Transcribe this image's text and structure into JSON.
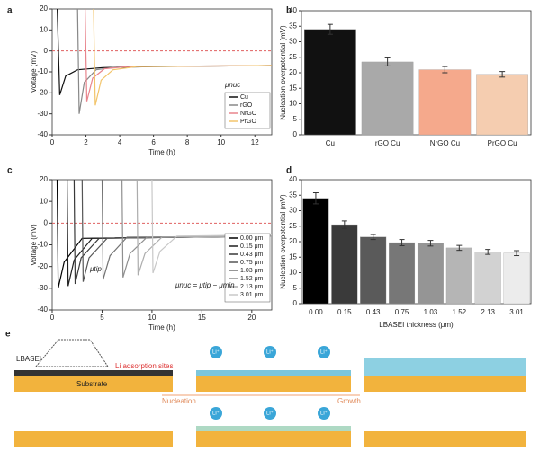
{
  "chart_data": [
    {
      "type": "line",
      "panel": "a",
      "xlabel": "Time (h)",
      "ylabel": "Voltage (mV)",
      "xlim": [
        0,
        13
      ],
      "xticks": [
        0,
        2,
        4,
        6,
        8,
        10,
        12
      ],
      "ylim": [
        -40,
        20
      ],
      "yticks": [
        -40,
        -30,
        -20,
        -10,
        0,
        10,
        20
      ],
      "legend": "lower right",
      "annotations": [
        "μnuc"
      ],
      "series": [
        {
          "name": "Cu",
          "color": "#111111",
          "x": [
            0.3,
            0.45,
            0.8,
            1.5,
            3,
            6,
            13
          ],
          "values": [
            20,
            -21,
            -12,
            -9,
            -8,
            -7.5,
            -7
          ]
        },
        {
          "name": "rGO",
          "color": "#888888",
          "x": [
            1.5,
            1.6,
            1.9,
            2.6,
            4,
            13
          ],
          "values": [
            20,
            -30,
            -15,
            -9,
            -7.5,
            -7
          ]
        },
        {
          "name": "NrGO",
          "color": "#e8848c",
          "x": [
            1.95,
            2.05,
            2.4,
            3.1,
            4.5,
            13
          ],
          "values": [
            20,
            -24,
            -13,
            -8.5,
            -7.5,
            -7
          ]
        },
        {
          "name": "PrGO",
          "color": "#f2c46a",
          "x": [
            2.45,
            2.55,
            2.9,
            3.6,
            5,
            13
          ],
          "values": [
            20,
            -26,
            -14,
            -9,
            -7.5,
            -7
          ]
        }
      ]
    },
    {
      "type": "bar",
      "panel": "b",
      "ylabel": "Nucleation overpotential (mV)",
      "ylim": [
        0,
        40
      ],
      "yticks": [
        0,
        5,
        10,
        15,
        20,
        25,
        30,
        35,
        40
      ],
      "categories": [
        "Cu",
        "rGO Cu",
        "NrGO Cu",
        "PrGO Cu"
      ],
      "values": [
        34,
        23.5,
        21,
        19.5
      ],
      "errors": [
        1.6,
        1.3,
        1,
        0.9
      ],
      "colors": [
        "#111111",
        "#a9a9a9",
        "#f5a98c",
        "#f5cdb0"
      ]
    },
    {
      "type": "line",
      "panel": "c",
      "xlabel": "Time (h)",
      "ylabel": "Voltage (mV)",
      "xlim": [
        0,
        22
      ],
      "xticks": [
        0,
        5,
        10,
        15,
        20
      ],
      "ylim": [
        -40,
        20
      ],
      "yticks": [
        -40,
        -30,
        -20,
        -10,
        0,
        10,
        20
      ],
      "legend": "right",
      "annotations": [
        "μtip",
        "μnuc = μtip − μmin"
      ],
      "series": [
        {
          "name": "0.00 μm",
          "color": "#000000",
          "x": [
            0.5,
            0.6,
            1.2,
            3,
            22
          ],
          "values": [
            20,
            -30,
            -18,
            -7,
            -6
          ]
        },
        {
          "name": "0.15 μm",
          "color": "#1e1e1e",
          "x": [
            1.5,
            1.6,
            2.2,
            4,
            22
          ],
          "values": [
            20,
            -29,
            -17,
            -7,
            -6
          ]
        },
        {
          "name": "0.43 μm",
          "color": "#383838",
          "x": [
            2.2,
            2.3,
            2.9,
            4.7,
            22
          ],
          "values": [
            20,
            -28,
            -16,
            -7,
            -6
          ]
        },
        {
          "name": "0.75 μm",
          "color": "#555555",
          "x": [
            3,
            3.1,
            3.7,
            5.5,
            22
          ],
          "values": [
            20,
            -27,
            -16,
            -7,
            -6
          ]
        },
        {
          "name": "1.03 μm",
          "color": "#727272",
          "x": [
            5,
            5.1,
            5.8,
            7.5,
            22
          ],
          "values": [
            20,
            -26,
            -15,
            -6.5,
            -6
          ]
        },
        {
          "name": "1.52 μm",
          "color": "#8f8f8f",
          "x": [
            7,
            7.1,
            7.8,
            9.5,
            22
          ],
          "values": [
            20,
            -25,
            -14,
            -6.5,
            -6
          ]
        },
        {
          "name": "2.13 μm",
          "color": "#acacac",
          "x": [
            8.5,
            8.6,
            9.3,
            11,
            22
          ],
          "values": [
            20,
            -24,
            -14,
            -6.5,
            -6
          ]
        },
        {
          "name": "3.01 μm",
          "color": "#c8c8c8",
          "x": [
            10,
            10.1,
            10.8,
            12.5,
            22
          ],
          "values": [
            20,
            -23,
            -13,
            -6,
            -5.5
          ]
        }
      ]
    },
    {
      "type": "bar",
      "panel": "d",
      "xlabel": "LBASEI thickness (μm)",
      "ylabel": "Nucleation overpotential (mV)",
      "ylim": [
        0,
        40
      ],
      "yticks": [
        0,
        5,
        10,
        15,
        20,
        25,
        30,
        35,
        40
      ],
      "categories": [
        "0.00",
        "0.15",
        "0.43",
        "0.75",
        "1.03",
        "1.52",
        "2.13",
        "3.01"
      ],
      "values": [
        34,
        25.5,
        21.5,
        19.7,
        19.5,
        18,
        16.7,
        16.3
      ],
      "errors": [
        1.8,
        1.2,
        0.8,
        1,
        0.9,
        0.8,
        0.8,
        0.8
      ],
      "colors": [
        "#000000",
        "#3a3a3a",
        "#5a5a5a",
        "#777777",
        "#959595",
        "#b5b5b5",
        "#d2d2d2",
        "#ececec"
      ]
    }
  ],
  "diagram": {
    "panel": "e",
    "lbasei": "LBASEI",
    "adsorption": "Li adsorption sites",
    "substrate": "Substrate",
    "nucleation": "Nucleation",
    "growth": "Growth",
    "li_ion": "Li⁺"
  }
}
